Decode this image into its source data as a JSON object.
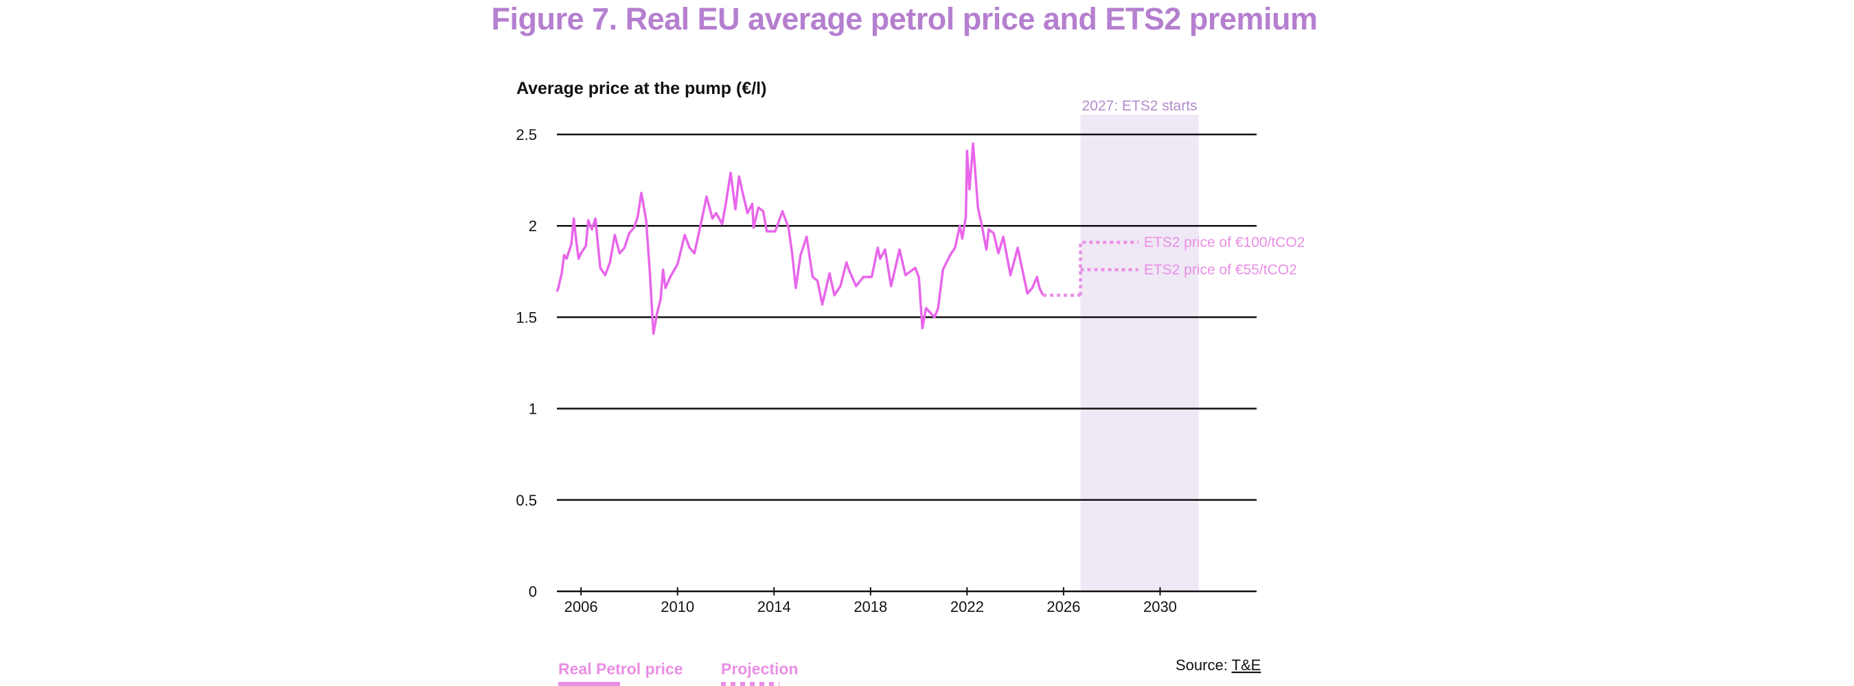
{
  "title": "Figure 7. Real EU average petrol price and ETS2 premium",
  "chart_data": {
    "type": "line",
    "title": "Figure 7. Real EU average petrol price and ETS2 premium",
    "ylabel": "Average price at the pump (€/l)",
    "xlabel": "",
    "xlim": [
      2005,
      2034
    ],
    "ylim": [
      0,
      2.5
    ],
    "x_ticks": [
      2006,
      2010,
      2014,
      2018,
      2022,
      2026,
      2030
    ],
    "y_ticks": [
      0,
      0.5,
      1,
      1.5,
      2,
      2.5
    ],
    "y_tick_labels": [
      "0",
      "0.5",
      "1",
      "1.5",
      "2",
      "2.5"
    ],
    "grid": "horizontal",
    "colors": {
      "title": "#b57fcf",
      "price_line": "#e866ea",
      "projection": "#e98fe5",
      "ets2_band": "#efe8f5",
      "annotation": "#b48ccc",
      "grid": "#111111"
    },
    "shaded_region": {
      "x_start": 2026.7,
      "x_end": 2031.6,
      "label": "2027: ETS2 starts"
    },
    "series": [
      {
        "name": "Real Petrol price",
        "style": "solid",
        "points": [
          [
            2005.0,
            1.64
          ],
          [
            2005.06,
            1.66
          ],
          [
            2005.2,
            1.74
          ],
          [
            2005.3,
            1.84
          ],
          [
            2005.4,
            1.82
          ],
          [
            2005.5,
            1.86
          ],
          [
            2005.6,
            1.9
          ],
          [
            2005.7,
            2.04
          ],
          [
            2005.8,
            1.92
          ],
          [
            2005.9,
            1.82
          ],
          [
            2006.0,
            1.85
          ],
          [
            2006.2,
            1.89
          ],
          [
            2006.3,
            2.03
          ],
          [
            2006.45,
            1.98
          ],
          [
            2006.6,
            2.04
          ],
          [
            2006.7,
            1.9
          ],
          [
            2006.8,
            1.77
          ],
          [
            2007.0,
            1.73
          ],
          [
            2007.2,
            1.8
          ],
          [
            2007.4,
            1.95
          ],
          [
            2007.6,
            1.85
          ],
          [
            2007.8,
            1.88
          ],
          [
            2008.0,
            1.96
          ],
          [
            2008.2,
            1.99
          ],
          [
            2008.35,
            2.05
          ],
          [
            2008.5,
            2.18
          ],
          [
            2008.7,
            2.03
          ],
          [
            2008.85,
            1.75
          ],
          [
            2009.0,
            1.41
          ],
          [
            2009.15,
            1.52
          ],
          [
            2009.3,
            1.6
          ],
          [
            2009.4,
            1.76
          ],
          [
            2009.5,
            1.66
          ],
          [
            2009.7,
            1.72
          ],
          [
            2010.0,
            1.79
          ],
          [
            2010.3,
            1.95
          ],
          [
            2010.5,
            1.88
          ],
          [
            2010.7,
            1.85
          ],
          [
            2011.0,
            2.03
          ],
          [
            2011.2,
            2.16
          ],
          [
            2011.45,
            2.04
          ],
          [
            2011.6,
            2.07
          ],
          [
            2011.85,
            2.01
          ],
          [
            2012.0,
            2.12
          ],
          [
            2012.2,
            2.29
          ],
          [
            2012.4,
            2.09
          ],
          [
            2012.55,
            2.27
          ],
          [
            2012.7,
            2.18
          ],
          [
            2012.9,
            2.07
          ],
          [
            2013.1,
            2.12
          ],
          [
            2013.15,
            1.99
          ],
          [
            2013.35,
            2.1
          ],
          [
            2013.55,
            2.08
          ],
          [
            2013.7,
            1.97
          ],
          [
            2014.05,
            1.97
          ],
          [
            2014.35,
            2.08
          ],
          [
            2014.6,
            1.99
          ],
          [
            2014.75,
            1.85
          ],
          [
            2014.9,
            1.66
          ],
          [
            2015.1,
            1.84
          ],
          [
            2015.35,
            1.94
          ],
          [
            2015.6,
            1.72
          ],
          [
            2015.8,
            1.7
          ],
          [
            2016.0,
            1.57
          ],
          [
            2016.3,
            1.74
          ],
          [
            2016.5,
            1.62
          ],
          [
            2016.75,
            1.67
          ],
          [
            2017.0,
            1.8
          ],
          [
            2017.1,
            1.76
          ],
          [
            2017.4,
            1.67
          ],
          [
            2017.7,
            1.72
          ],
          [
            2018.05,
            1.72
          ],
          [
            2018.3,
            1.88
          ],
          [
            2018.4,
            1.82
          ],
          [
            2018.6,
            1.87
          ],
          [
            2018.85,
            1.67
          ],
          [
            2019.2,
            1.87
          ],
          [
            2019.45,
            1.73
          ],
          [
            2019.85,
            1.77
          ],
          [
            2020.0,
            1.72
          ],
          [
            2020.15,
            1.44
          ],
          [
            2020.3,
            1.55
          ],
          [
            2020.65,
            1.5
          ],
          [
            2020.8,
            1.55
          ],
          [
            2021.0,
            1.76
          ],
          [
            2021.3,
            1.84
          ],
          [
            2021.5,
            1.88
          ],
          [
            2021.7,
            2.0
          ],
          [
            2021.8,
            1.93
          ],
          [
            2021.95,
            2.05
          ],
          [
            2022.0,
            2.41
          ],
          [
            2022.1,
            2.2
          ],
          [
            2022.25,
            2.45
          ],
          [
            2022.45,
            2.1
          ],
          [
            2022.6,
            2.01
          ],
          [
            2022.8,
            1.87
          ],
          [
            2022.9,
            1.98
          ],
          [
            2023.1,
            1.96
          ],
          [
            2023.3,
            1.85
          ],
          [
            2023.5,
            1.94
          ],
          [
            2023.8,
            1.73
          ],
          [
            2024.1,
            1.88
          ],
          [
            2024.5,
            1.63
          ],
          [
            2024.7,
            1.66
          ],
          [
            2024.9,
            1.72
          ],
          [
            2025.0,
            1.66
          ],
          [
            2025.15,
            1.62
          ]
        ]
      },
      {
        "name": "Projection",
        "style": "dotted",
        "points": [
          [
            2025.15,
            1.62
          ],
          [
            2026.7,
            1.62
          ]
        ]
      },
      {
        "name": "ETS2 price of €100/tCO2",
        "style": "dotted",
        "points": [
          [
            2026.7,
            1.62
          ],
          [
            2026.7,
            1.91
          ],
          [
            2029.1,
            1.91
          ]
        ]
      },
      {
        "name": "ETS2 price of €55/tCO2",
        "style": "dotted",
        "points": [
          [
            2026.7,
            1.76
          ],
          [
            2029.1,
            1.76
          ]
        ]
      }
    ],
    "annotations": [
      {
        "text": "2027: ETS2 starts"
      },
      {
        "text": "ETS2 price of €100/tCO2",
        "value": 1.91
      },
      {
        "text": "ETS2 price of €55/tCO2",
        "value": 1.76
      }
    ],
    "legend": {
      "placement": "bottom-left",
      "entries": [
        {
          "label": "Real Petrol price",
          "style": "solid"
        },
        {
          "label": "Projection",
          "style": "dotted"
        }
      ]
    },
    "source": {
      "prefix": "Source: ",
      "link": "T&E"
    }
  }
}
